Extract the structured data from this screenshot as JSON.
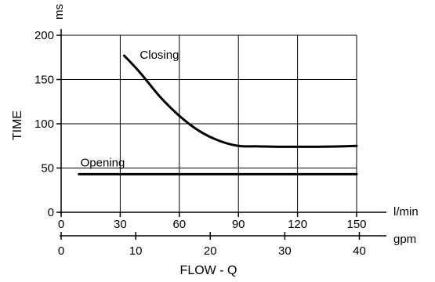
{
  "chart_data": {
    "type": "line",
    "title": "",
    "xlabel": "FLOW - Q",
    "ylabel": "TIME",
    "y_unit": "ms",
    "x_unit": "l/min",
    "x2_unit": "gpm",
    "xlim": [
      0,
      150
    ],
    "ylim": [
      0,
      200
    ],
    "x2lim": [
      0,
      40
    ],
    "x_ticks": [
      0,
      30,
      60,
      90,
      120,
      150
    ],
    "y_ticks": [
      0,
      50,
      100,
      150,
      200
    ],
    "x2_ticks": [
      0,
      10,
      20,
      30,
      40
    ],
    "grid": true,
    "series": [
      {
        "name": "Closing",
        "x": [
          32,
          40,
          50,
          60,
          70,
          80,
          90,
          100,
          110,
          120,
          130,
          140,
          150
        ],
        "y": [
          177,
          158,
          131,
          109,
          92,
          81,
          75,
          74.5,
          74,
          74,
          74,
          74.3,
          75
        ]
      },
      {
        "name": "Opening",
        "x": [
          9,
          150
        ],
        "y": [
          43,
          43
        ]
      }
    ]
  }
}
